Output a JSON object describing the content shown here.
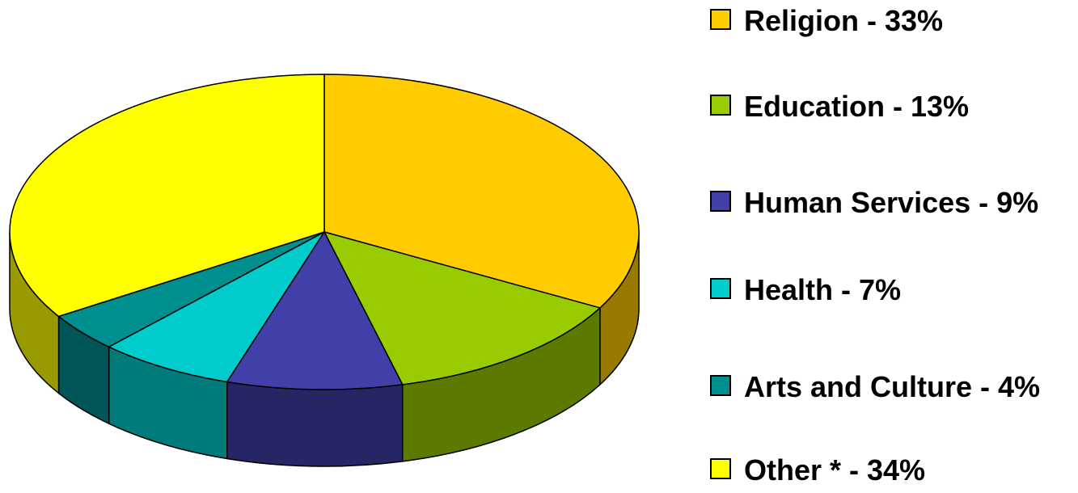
{
  "chart_data": {
    "type": "pie3d",
    "categories": [
      "Religion - 33%",
      "Education - 13%",
      "Human Services - 9%",
      "Health - 7%",
      "Arts and Culture - 4%",
      "Other * - 34%"
    ],
    "values": [
      33,
      13,
      9,
      7,
      4,
      34
    ],
    "colors": [
      "#ffcc00",
      "#99cc00",
      "#4040a8",
      "#00cccc",
      "#008f8f",
      "#ffff00"
    ],
    "legend": "right"
  }
}
